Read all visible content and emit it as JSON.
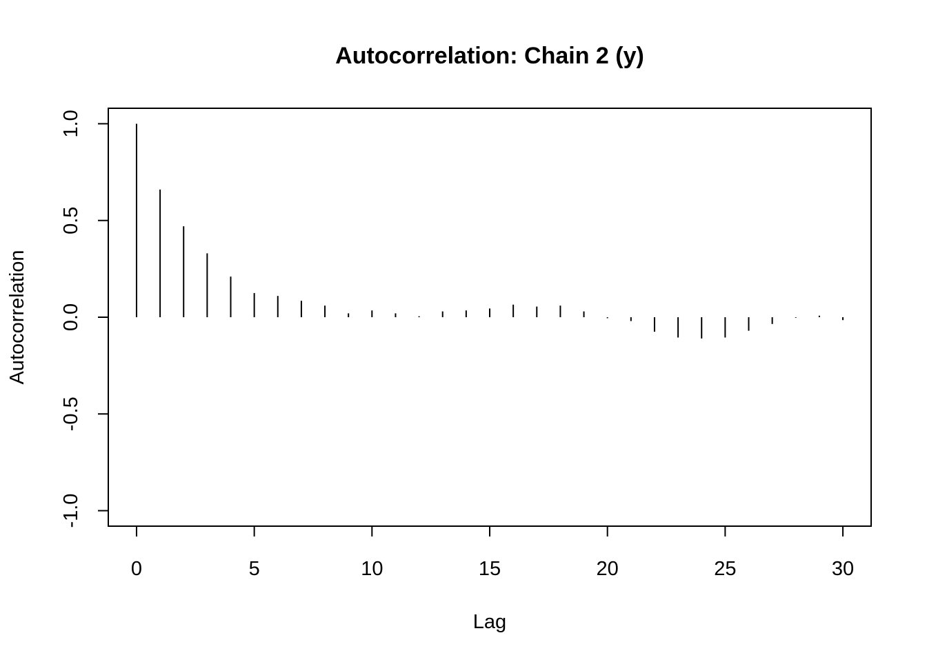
{
  "chart_data": {
    "type": "bar",
    "style": "acf-spikes",
    "title": "Autocorrelation: Chain 2 (y)",
    "xlabel": "Lag",
    "ylabel": "Autocorrelation",
    "xlim": [
      -1.2,
      31.2
    ],
    "ylim": [
      -1.08,
      1.08
    ],
    "x_ticks": [
      0,
      5,
      10,
      15,
      20,
      25,
      30
    ],
    "x_tick_labels": [
      "0",
      "5",
      "10",
      "15",
      "20",
      "25",
      "30"
    ],
    "y_ticks": [
      -1.0,
      -0.5,
      0.0,
      0.5,
      1.0
    ],
    "y_tick_labels": [
      "-1.0",
      "-0.5",
      "0.0",
      "0.5",
      "1.0"
    ],
    "grid": false,
    "legend": "none",
    "x": [
      0,
      1,
      2,
      3,
      4,
      5,
      6,
      7,
      8,
      9,
      10,
      11,
      12,
      13,
      14,
      15,
      16,
      17,
      18,
      19,
      20,
      21,
      22,
      23,
      24,
      25,
      26,
      27,
      28,
      29,
      30
    ],
    "values": [
      1.0,
      0.66,
      0.47,
      0.33,
      0.21,
      0.125,
      0.11,
      0.085,
      0.06,
      0.02,
      0.035,
      0.02,
      0.005,
      0.03,
      0.035,
      0.045,
      0.065,
      0.055,
      0.06,
      0.03,
      -0.005,
      -0.02,
      -0.075,
      -0.105,
      -0.11,
      -0.105,
      -0.07,
      -0.035,
      -0.003,
      0.008,
      -0.015
    ],
    "bar_color": "#000000"
  }
}
